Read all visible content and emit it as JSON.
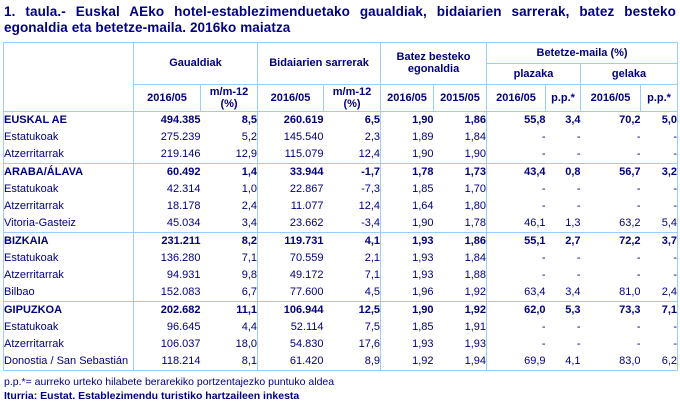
{
  "colors": {
    "text": "#000080",
    "border": "#99ccff",
    "background": "#ffffff"
  },
  "title": "1. taula.- Euskal AEko hotel-establezimenduetako gaualdiak, bidaiarien sarrerak, batez besteko egonaldia eta betetze-maila. 2016ko maiatza",
  "table": {
    "groups": [
      {
        "label": "Gaualdiak"
      },
      {
        "label": "Bidaiarien sarrerak"
      },
      {
        "label": "Batez besteko egonaldia"
      },
      {
        "label": "Betetze-maila (%)"
      }
    ],
    "subgroups": [
      {
        "label": "plazaka"
      },
      {
        "label": "gelaka"
      }
    ],
    "columns": [
      "2016/05",
      "m/m-12 (%)",
      "2016/05",
      "m/m-12 (%)",
      "2016/05",
      "2015/05",
      "2016/05",
      "p.p.*",
      "2016/05",
      "p.p.*"
    ],
    "rows": [
      {
        "label": "EUSKAL AE",
        "bold": true,
        "sep": false,
        "values": [
          "494.385",
          "8,5",
          "260.619",
          "6,5",
          "1,90",
          "1,86",
          "55,8",
          "3,4",
          "70,2",
          "5,0"
        ]
      },
      {
        "label": "Estatukoak",
        "bold": false,
        "sep": false,
        "values": [
          "275.239",
          "5,2",
          "145.540",
          "2,3",
          "1,89",
          "1,84",
          "-",
          "-",
          "-",
          "-"
        ]
      },
      {
        "label": "Atzerritarrak",
        "bold": false,
        "sep": false,
        "values": [
          "219.146",
          "12,9",
          "115.079",
          "12,4",
          "1,90",
          "1,90",
          "-",
          "-",
          "-",
          "-"
        ]
      },
      {
        "label": "ARABA/ÁLAVA",
        "bold": true,
        "sep": true,
        "values": [
          "60.492",
          "1,4",
          "33.944",
          "-1,7",
          "1,78",
          "1,73",
          "43,4",
          "0,8",
          "56,7",
          "3,2"
        ]
      },
      {
        "label": "Estatukoak",
        "bold": false,
        "sep": false,
        "values": [
          "42.314",
          "1,0",
          "22.867",
          "-7,3",
          "1,85",
          "1,70",
          "-",
          "-",
          "-",
          "-"
        ]
      },
      {
        "label": "Atzerritarrak",
        "bold": false,
        "sep": false,
        "values": [
          "18.178",
          "2,4",
          "11.077",
          "12,4",
          "1,64",
          "1,80",
          "-",
          "-",
          "-",
          "-"
        ]
      },
      {
        "label": "Vitoria-Gasteiz",
        "bold": false,
        "sep": false,
        "values": [
          "45.034",
          "3,4",
          "23.662",
          "-3,4",
          "1,90",
          "1,78",
          "46,1",
          "1,3",
          "63,2",
          "5,4"
        ]
      },
      {
        "label": "BIZKAIA",
        "bold": true,
        "sep": true,
        "values": [
          "231.211",
          "8,2",
          "119.731",
          "4,1",
          "1,93",
          "1,86",
          "55,1",
          "2,7",
          "72,2",
          "3,7"
        ]
      },
      {
        "label": "Estatukoak",
        "bold": false,
        "sep": false,
        "values": [
          "136.280",
          "7,1",
          "70.559",
          "2,1",
          "1,93",
          "1,84",
          "-",
          "-",
          "-",
          "-"
        ]
      },
      {
        "label": "Atzerritarrak",
        "bold": false,
        "sep": false,
        "values": [
          "94.931",
          "9,8",
          "49.172",
          "7,1",
          "1,93",
          "1,88",
          "-",
          "-",
          "-",
          "-"
        ]
      },
      {
        "label": "Bilbao",
        "bold": false,
        "sep": false,
        "values": [
          "152.083",
          "6,7",
          "77.600",
          "4,5",
          "1,96",
          "1,92",
          "63,4",
          "3,4",
          "81,0",
          "2,4"
        ]
      },
      {
        "label": "GIPUZKOA",
        "bold": true,
        "sep": true,
        "values": [
          "202.682",
          "11,1",
          "106.944",
          "12,5",
          "1,90",
          "1,92",
          "62,0",
          "5,3",
          "73,3",
          "7,1"
        ]
      },
      {
        "label": "Estatukoak",
        "bold": false,
        "sep": false,
        "values": [
          "96.645",
          "4,4",
          "52.114",
          "7,5",
          "1,85",
          "1,91",
          "-",
          "-",
          "-",
          "-"
        ]
      },
      {
        "label": "Atzerritarrak",
        "bold": false,
        "sep": false,
        "values": [
          "106.037",
          "18,0",
          "54.830",
          "17,6",
          "1,93",
          "1,93",
          "-",
          "-",
          "-",
          "-"
        ]
      },
      {
        "label": "Donostia / San Sebastián",
        "bold": false,
        "sep": false,
        "values": [
          "118.214",
          "8,1",
          "61.420",
          "8,9",
          "1,92",
          "1,94",
          "69,9",
          "4,1",
          "83,0",
          "6,2"
        ]
      }
    ]
  },
  "footnote": "p.p.*= aurreko urteko hilabete berarekiko portzentajezko puntuko aldea",
  "source": "Iturria: Eustat. Establezimendu turistiko hartzaileen inkesta"
}
